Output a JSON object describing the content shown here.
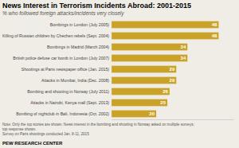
{
  "chart_data": {
    "type": "bar",
    "orientation": "horizontal",
    "title": "News Interest in Terrorism Incidents Abroad: 2001-2015",
    "subtitle": "% who followed foreign attacks/incidents very closely",
    "categories": [
      "Bombings in London (July 2005)",
      "Killing of Russian children by Chechen rebels (Sept. 2004)",
      "Bombings in Madrid (March 2004)",
      "British police defuse car bomb in London (July 2007)",
      "Shootings at Paris newspaper office (Jan. 2015)",
      "Attacks in Mumbai, India (Dec. 2008)",
      "Bombing and shooting in Norway (July 2011)",
      "Attacks in Nairobi, Kenya mall (Sept. 2013)",
      "Bombing of nightclub in Bali, Indonesia (Oct. 2002)"
    ],
    "values": [
      48,
      48,
      34,
      34,
      29,
      29,
      26,
      25,
      20
    ],
    "color": "#C9A227",
    "xlim": [
      0,
      55
    ],
    "data_labels": true,
    "tick_labels": "y",
    "grid": false,
    "annotations": [
      "Note: Only the top stories are shown. News interest in the bombing and shooting in Norway asked on multiple surveys;",
      "top response shown.",
      "Survey on Paris shootings conducted Jan. 8-11, 2015",
      "PEW RESEARCH CENTER"
    ]
  }
}
